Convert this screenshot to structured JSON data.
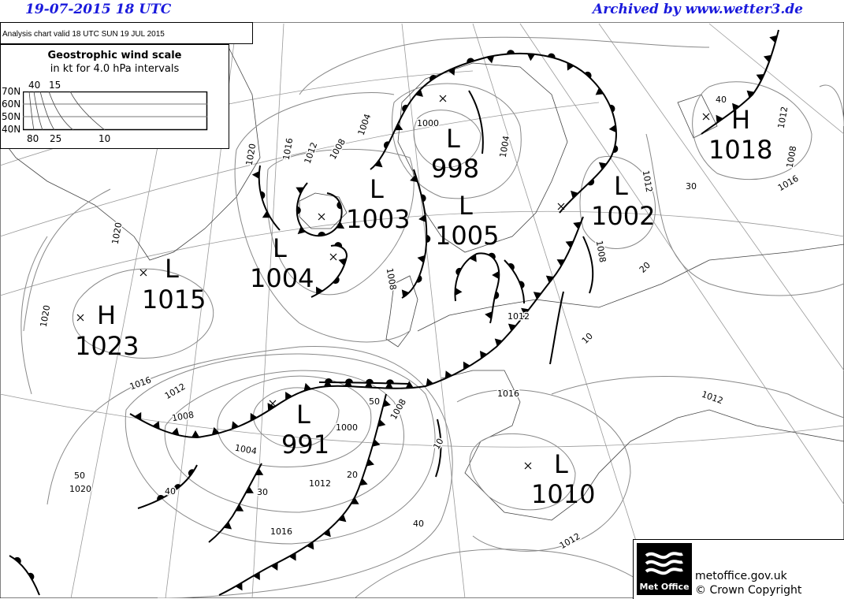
{
  "header": {
    "date_time": "19-07-2015   18 UTC",
    "archive": "Archived by www.wetter3.de"
  },
  "analysis_label": "Analysis chart  valid 18 UTC SUN 19  JUL 2015",
  "wind_scale": {
    "title": "Geostrophic wind scale",
    "subtitle": "in kt for 4.0 hPa intervals",
    "top_labels": [
      "40",
      "15"
    ],
    "bottom_labels": [
      "80",
      "25",
      "10"
    ],
    "latitudes": [
      "70N",
      "60N",
      "50N",
      "40N"
    ]
  },
  "pressure_centers": [
    {
      "type": "H",
      "value": "1023"
    },
    {
      "type": "L",
      "value": "1015"
    },
    {
      "type": "L",
      "value": "1004"
    },
    {
      "type": "L",
      "value": "1003"
    },
    {
      "type": "L",
      "value": "998"
    },
    {
      "type": "L",
      "value": "1005"
    },
    {
      "type": "L",
      "value": "1002"
    },
    {
      "type": "H",
      "value": "1018"
    },
    {
      "type": "L",
      "value": "991"
    },
    {
      "type": "L",
      "value": "1010"
    }
  ],
  "isobar_labels": [
    "1020",
    "1016",
    "1012",
    "1008",
    "1004",
    "1000",
    "1004",
    "1012",
    "1008",
    "1012",
    "1016",
    "40",
    "30",
    "1008",
    "20",
    "10",
    "1012",
    "1008",
    "1020",
    "1020",
    "1016",
    "1012",
    "1008",
    "1004",
    "1000",
    "50",
    "1008",
    "10",
    "20",
    "30",
    "40",
    "50",
    "1020",
    "1016",
    "1012",
    "40",
    "1016",
    "1012",
    "1012"
  ],
  "footer": {
    "logo_text": "Met Office",
    "url": "metoffice.gov.uk",
    "copyright": "© Crown Copyright"
  },
  "colors": {
    "header": "#1a1adc",
    "isobar": "#888888",
    "front": "#000000"
  }
}
